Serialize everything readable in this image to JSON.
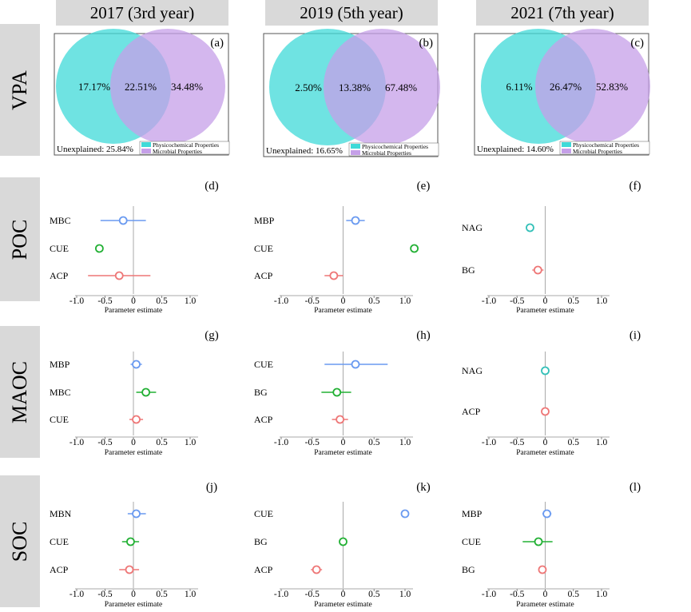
{
  "columns": [
    "2017 (3rd year)",
    "2019 (5th year)",
    "2021 (7th year)"
  ],
  "rows": [
    "VPA",
    "POC",
    "MAOC",
    "SOC"
  ],
  "colors": {
    "cyan": "#3fdad8",
    "purple": "#c59fe8",
    "blue": "#6a9af0",
    "green": "#22b034",
    "red": "#ee7777",
    "teal": "#33c0b8",
    "header_bg": "#d9d9d9"
  },
  "venn_legend": [
    "Physicochemical Properties",
    "Microbial Properties"
  ],
  "venn_panels": [
    {
      "label": "(a)",
      "left": "17.17%",
      "middle": "22.51%",
      "right": "34.48%",
      "unexplained": "Unexplained: 25.84%"
    },
    {
      "label": "(b)",
      "left": "2.50%",
      "middle": "13.38%",
      "right": "67.48%",
      "unexplained": "Unexplained: 16.65%"
    },
    {
      "label": "(c)",
      "left": "6.11%",
      "middle": "26.47%",
      "right": "52.83%",
      "unexplained": "Unexplained: 14.60%"
    }
  ],
  "chart_data": {
    "type": "forest",
    "x_label": "Parameter estimate",
    "x_ticks": [
      "-1.0",
      "-0.5",
      "0",
      "0.5",
      "1.0"
    ],
    "x_ticks_2019": [
      "-1.0",
      "-0.5",
      "0",
      "0.5",
      "1.0"
    ],
    "xlim": [
      -1.0,
      1.0
    ],
    "panels": [
      {
        "label": "(d)",
        "row": "POC",
        "column": "2017 (3rd year)",
        "terms": [
          {
            "name": "MBC",
            "estimate": -0.18,
            "ci": [
              -0.58,
              0.22
            ],
            "color": "blue"
          },
          {
            "name": "CUE",
            "estimate": -0.6,
            "ci": [
              -0.6,
              -0.6
            ],
            "color": "green"
          },
          {
            "name": "ACP",
            "estimate": -0.25,
            "ci": [
              -0.8,
              0.3
            ],
            "color": "red"
          }
        ]
      },
      {
        "label": "(e)",
        "row": "POC",
        "column": "2019 (5th year)",
        "terms": [
          {
            "name": "MBP",
            "estimate": 0.2,
            "ci": [
              0.05,
              0.35
            ],
            "color": "blue"
          },
          {
            "name": "CUE",
            "estimate": 1.15,
            "ci": [
              1.15,
              1.15
            ],
            "color": "green"
          },
          {
            "name": "ACP",
            "estimate": -0.15,
            "ci": [
              -0.3,
              0.0
            ],
            "color": "red"
          }
        ]
      },
      {
        "label": "(f)",
        "row": "POC",
        "column": "2021 (7th year)",
        "terms": [
          {
            "name": "NAG",
            "estimate": -0.27,
            "ci": [
              -0.33,
              -0.21
            ],
            "color": "teal"
          },
          {
            "name": "BG",
            "estimate": -0.13,
            "ci": [
              -0.23,
              -0.03
            ],
            "color": "red"
          }
        ]
      },
      {
        "label": "(g)",
        "row": "MAOC",
        "column": "2017 (3rd year)",
        "terms": [
          {
            "name": "MBP",
            "estimate": 0.05,
            "ci": [
              -0.05,
              0.15
            ],
            "color": "blue"
          },
          {
            "name": "MBC",
            "estimate": 0.22,
            "ci": [
              0.05,
              0.4
            ],
            "color": "green"
          },
          {
            "name": "CUE",
            "estimate": 0.05,
            "ci": [
              -0.07,
              0.17
            ],
            "color": "red"
          }
        ]
      },
      {
        "label": "(h)",
        "row": "MAOC",
        "column": "2019 (5th year)",
        "terms": [
          {
            "name": "CUE",
            "estimate": 0.2,
            "ci": [
              -0.3,
              0.72
            ],
            "color": "blue"
          },
          {
            "name": "BG",
            "estimate": -0.1,
            "ci": [
              -0.35,
              0.13
            ],
            "color": "green"
          },
          {
            "name": "ACP",
            "estimate": -0.05,
            "ci": [
              -0.18,
              0.08
            ],
            "color": "red"
          }
        ]
      },
      {
        "label": "(i)",
        "row": "MAOC",
        "column": "2021 (7th year)",
        "terms": [
          {
            "name": "NAG",
            "estimate": 0.0,
            "ci": [
              -0.03,
              0.03
            ],
            "color": "teal"
          },
          {
            "name": "ACP",
            "estimate": 0.0,
            "ci": [
              -0.04,
              0.04
            ],
            "color": "red"
          }
        ]
      },
      {
        "label": "(j)",
        "row": "SOC",
        "column": "2017 (3rd year)",
        "terms": [
          {
            "name": "MBN",
            "estimate": 0.05,
            "ci": [
              -0.1,
              0.22
            ],
            "color": "blue"
          },
          {
            "name": "CUE",
            "estimate": -0.05,
            "ci": [
              -0.2,
              0.1
            ],
            "color": "green"
          },
          {
            "name": "ACP",
            "estimate": -0.07,
            "ci": [
              -0.25,
              0.1
            ],
            "color": "red"
          }
        ]
      },
      {
        "label": "(k)",
        "row": "SOC",
        "column": "2019 (5th year)",
        "terms": [
          {
            "name": "CUE",
            "estimate": 1.0,
            "ci": [
              1.0,
              1.0
            ],
            "color": "blue"
          },
          {
            "name": "BG",
            "estimate": 0.0,
            "ci": [
              -0.05,
              0.05
            ],
            "color": "green"
          },
          {
            "name": "ACP",
            "estimate": -0.43,
            "ci": [
              -0.52,
              -0.34
            ],
            "color": "red"
          }
        ]
      },
      {
        "label": "(l)",
        "row": "SOC",
        "column": "2021 (7th year)",
        "terms": [
          {
            "name": "MBP",
            "estimate": 0.03,
            "ci": [
              -0.05,
              0.11
            ],
            "color": "blue"
          },
          {
            "name": "CUE",
            "estimate": -0.12,
            "ci": [
              -0.4,
              0.13
            ],
            "color": "green"
          },
          {
            "name": "BG",
            "estimate": -0.05,
            "ci": [
              -0.1,
              0.0
            ],
            "color": "red"
          }
        ]
      }
    ]
  }
}
